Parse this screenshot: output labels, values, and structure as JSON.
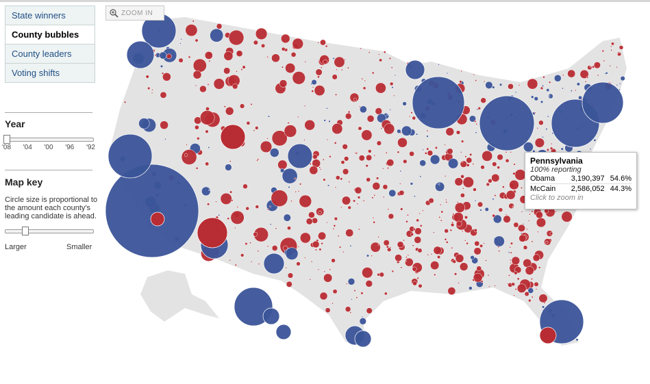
{
  "tabs": [
    "State winners",
    "County bubbles",
    "County leaders",
    "Voting shifts"
  ],
  "zoom_button": "ZOOM IN",
  "year": {
    "title": "Year",
    "ticks": [
      "'08",
      "'04",
      "'00",
      "'96",
      "'92"
    ]
  },
  "map_key": {
    "title": "Map key",
    "description": "Circle size is proportional to the amount each county's leading candidate is ahead.",
    "left_label": "Larger",
    "right_label": "Smaller"
  },
  "tooltip": {
    "state": "Pennsylvania",
    "reporting": "100% reporting",
    "rows": [
      [
        "Obama",
        "3,190,397",
        "54.6%"
      ],
      [
        "McCain",
        "2,586,052",
        "44.3%"
      ]
    ],
    "hint": "Click to zoom in"
  }
}
